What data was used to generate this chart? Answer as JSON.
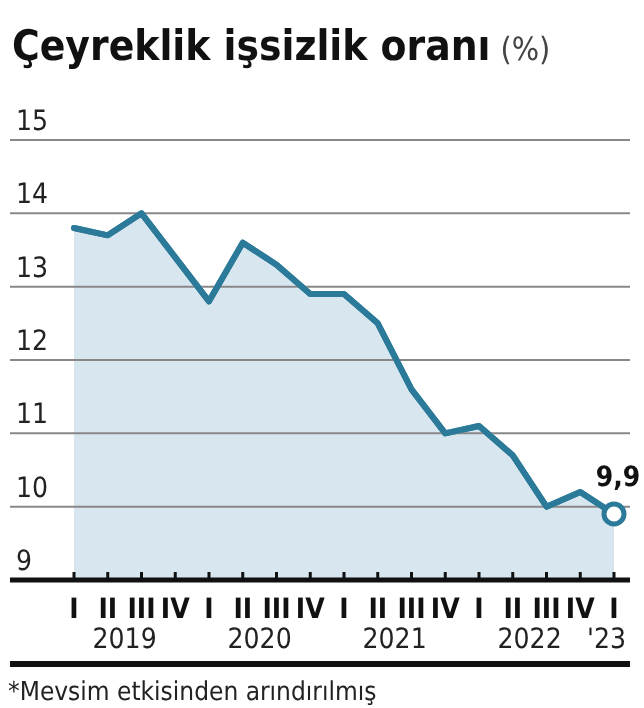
{
  "chart_data": {
    "type": "area",
    "title": "Çeyreklik işsizlik oranı",
    "ylabel": "(%)",
    "categories": [
      "I",
      "II",
      "III",
      "IV",
      "I",
      "II",
      "III",
      "IV",
      "I",
      "II",
      "III",
      "IV",
      "I",
      "II",
      "III",
      "IV",
      "I"
    ],
    "values": [
      13.8,
      13.7,
      14.0,
      13.4,
      12.8,
      13.6,
      13.3,
      12.9,
      12.9,
      12.5,
      11.6,
      11.0,
      11.1,
      10.7,
      10.0,
      10.2,
      9.9
    ],
    "value_labels": [
      null,
      null,
      null,
      null,
      null,
      null,
      null,
      null,
      null,
      null,
      null,
      null,
      null,
      null,
      null,
      null,
      "9,9"
    ],
    "color": "#2b7a99",
    "ylim": [
      9,
      15
    ],
    "yticks": [
      9,
      10,
      11,
      12,
      13,
      14,
      15
    ],
    "grid": "y",
    "annotations": [
      "2019",
      "2020",
      "2021",
      "2022",
      "'23",
      "*Mevsim etkisinden arındırılmış"
    ]
  }
}
